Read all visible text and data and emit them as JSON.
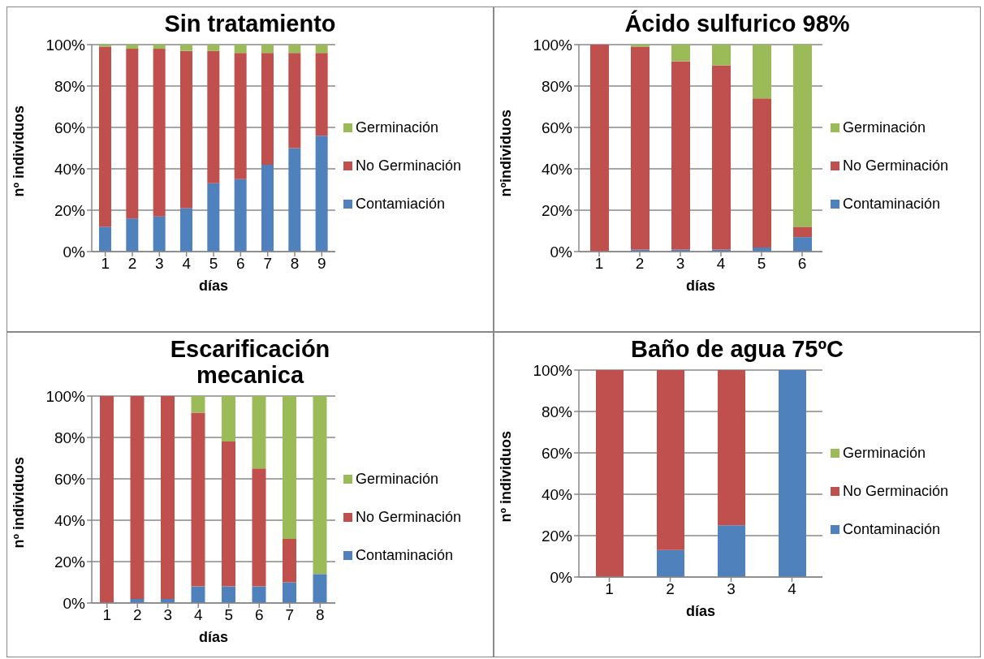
{
  "chart_data": [
    {
      "type": "bar",
      "stacked": true,
      "title": "Sin tratamiento",
      "xlabel": "días",
      "ylabel": "nº individuos",
      "categories": [
        "1",
        "2",
        "3",
        "4",
        "5",
        "6",
        "7",
        "8",
        "9"
      ],
      "series": [
        {
          "name": "Contamiación",
          "color": "#4f81bd",
          "values": [
            12,
            16,
            17,
            21,
            33,
            35,
            42,
            50,
            56
          ]
        },
        {
          "name": "No Germinación",
          "color": "#c0504d",
          "values": [
            87,
            82,
            81,
            76,
            64,
            61,
            54,
            46,
            40
          ]
        },
        {
          "name": "Germinación",
          "color": "#9bbb59",
          "values": [
            1,
            2,
            2,
            3,
            3,
            4,
            4,
            4,
            4
          ]
        }
      ],
      "ylim": [
        0,
        100
      ],
      "yticks": [
        {
          "value": 0,
          "label": "0%"
        },
        {
          "value": 20,
          "label": "20%"
        },
        {
          "value": 40,
          "label": "40%"
        },
        {
          "value": 60,
          "label": "60%"
        },
        {
          "value": 80,
          "label": "80%"
        },
        {
          "value": 100,
          "label": "100%"
        }
      ],
      "grid": "y",
      "legend": "right"
    },
    {
      "type": "bar",
      "stacked": true,
      "title": "Ácido sulfurico 98%",
      "xlabel": "días",
      "ylabel": "nºindividuos",
      "categories": [
        "1",
        "2",
        "3",
        "4",
        "5",
        "6"
      ],
      "series": [
        {
          "name": "Contaminación",
          "color": "#4f81bd",
          "values": [
            0,
            1,
            1,
            1,
            2,
            7
          ]
        },
        {
          "name": "No Germinación",
          "color": "#c0504d",
          "values": [
            100,
            98,
            91,
            89,
            72,
            5
          ]
        },
        {
          "name": "Germinación",
          "color": "#9bbb59",
          "values": [
            0,
            1,
            8,
            10,
            26,
            88
          ]
        }
      ],
      "ylim": [
        0,
        100
      ],
      "yticks": [
        {
          "value": 0,
          "label": "0%"
        },
        {
          "value": 20,
          "label": "20%"
        },
        {
          "value": 40,
          "label": "40%"
        },
        {
          "value": 60,
          "label": "60%"
        },
        {
          "value": 80,
          "label": "80%"
        },
        {
          "value": 100,
          "label": "100%"
        }
      ],
      "grid": "y",
      "legend": "right"
    },
    {
      "type": "bar",
      "stacked": true,
      "title": "Escarificación mecanica",
      "xlabel": "días",
      "ylabel": "nº individuos",
      "categories": [
        "1",
        "2",
        "3",
        "4",
        "5",
        "6",
        "7",
        "8"
      ],
      "series": [
        {
          "name": "Contaminación",
          "color": "#4f81bd",
          "values": [
            0,
            2,
            2,
            8,
            8,
            8,
            10,
            14
          ]
        },
        {
          "name": "No Germinación",
          "color": "#c0504d",
          "values": [
            100,
            98,
            98,
            84,
            70,
            57,
            21,
            0
          ]
        },
        {
          "name": "Germinación",
          "color": "#9bbb59",
          "values": [
            0,
            0,
            0,
            8,
            22,
            35,
            69,
            86
          ]
        }
      ],
      "ylim": [
        0,
        100
      ],
      "yticks": [
        {
          "value": 0,
          "label": "0%"
        },
        {
          "value": 20,
          "label": "20%"
        },
        {
          "value": 40,
          "label": "40%"
        },
        {
          "value": 60,
          "label": "60%"
        },
        {
          "value": 80,
          "label": "80%"
        },
        {
          "value": 100,
          "label": "100%"
        }
      ],
      "grid": "y",
      "legend": "right"
    },
    {
      "type": "bar",
      "stacked": true,
      "title": "Baño de agua 75ºC",
      "xlabel": "días",
      "ylabel": "nº individuos",
      "categories": [
        "1",
        "2",
        "3",
        "4"
      ],
      "series": [
        {
          "name": "Contaminación",
          "color": "#4f81bd",
          "values": [
            0,
            13,
            25,
            100
          ]
        },
        {
          "name": "No Germinación",
          "color": "#c0504d",
          "values": [
            100,
            87,
            75,
            0
          ]
        },
        {
          "name": "Germinación",
          "color": "#9bbb59",
          "values": [
            0,
            0,
            0,
            0
          ]
        }
      ],
      "ylim": [
        0,
        100
      ],
      "yticks": [
        {
          "value": 0,
          "label": "0%"
        },
        {
          "value": 20,
          "label": "20%"
        },
        {
          "value": 40,
          "label": "40%"
        },
        {
          "value": 60,
          "label": "60%"
        },
        {
          "value": 80,
          "label": "80%"
        },
        {
          "value": 100,
          "label": "100%"
        }
      ],
      "grid": "y",
      "legend": "right"
    }
  ]
}
